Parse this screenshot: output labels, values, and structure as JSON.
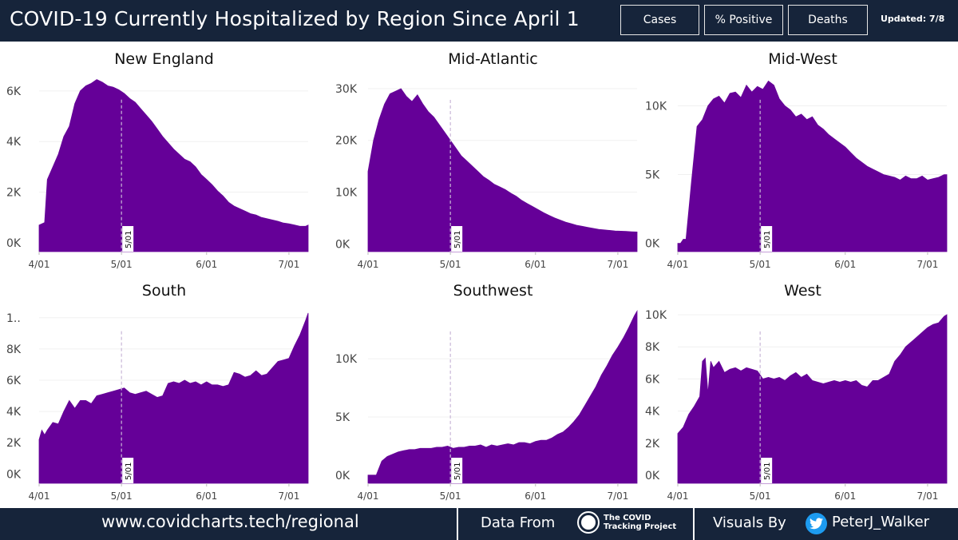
{
  "header": {
    "title": "COVID-19 Currently Hospitalized by Region Since April 1",
    "buttons": [
      "Cases",
      "% Positive",
      "Deaths"
    ],
    "updated": "Updated: 7/8"
  },
  "footer": {
    "url": "www.covidcharts.tech/regional",
    "data_from": "Data From",
    "logo_text": "The COVID Tracking Project",
    "visuals_by": "Visuals By",
    "handle": "PeterJ_Walker"
  },
  "colors": {
    "fill": "#650098",
    "header_bg": "#16243a",
    "marker_line": "#c9b7d8"
  },
  "chart_data": [
    {
      "type": "area",
      "title": "New England",
      "x_ticks": [
        "4/01",
        "5/01",
        "6/01",
        "7/01"
      ],
      "y_ticks": [
        "0K",
        "2K",
        "4K",
        "6K"
      ],
      "y_tick_values": [
        0,
        2000,
        4000,
        6000
      ],
      "ylim": [
        -350,
        6500
      ],
      "xlim": [
        0,
        98
      ],
      "marker": {
        "label": "5/01",
        "day": 30
      },
      "x_days": [
        0,
        2,
        3,
        5,
        7,
        9,
        11,
        13,
        15,
        17,
        19,
        21,
        23,
        25,
        27,
        29,
        31,
        33,
        35,
        37,
        39,
        41,
        43,
        45,
        47,
        49,
        51,
        53,
        55,
        57,
        59,
        61,
        63,
        65,
        67,
        69,
        71,
        73,
        75,
        77,
        79,
        81,
        83,
        85,
        87,
        89,
        91,
        93,
        95,
        97,
        98
      ],
      "values": [
        700,
        800,
        2500,
        3000,
        3500,
        4200,
        4600,
        5500,
        6000,
        6200,
        6300,
        6450,
        6350,
        6200,
        6150,
        6050,
        5900,
        5700,
        5550,
        5300,
        5050,
        4800,
        4500,
        4200,
        3950,
        3700,
        3500,
        3300,
        3200,
        3000,
        2700,
        2500,
        2300,
        2050,
        1850,
        1600,
        1450,
        1350,
        1250,
        1150,
        1100,
        1000,
        950,
        900,
        850,
        780,
        750,
        700,
        650,
        650,
        700
      ]
    },
    {
      "type": "area",
      "title": "Mid-Atlantic",
      "x_ticks": [
        "4/01",
        "5/01",
        "6/01",
        "7/01"
      ],
      "y_ticks": [
        "0K",
        "10K",
        "20K",
        "30K"
      ],
      "y_tick_values": [
        0,
        10000,
        20000,
        30000
      ],
      "ylim": [
        -1500,
        32000
      ],
      "xlim": [
        0,
        98
      ],
      "marker": {
        "label": "5/01",
        "day": 30
      },
      "x_days": [
        0,
        2,
        4,
        6,
        8,
        10,
        12,
        14,
        16,
        18,
        20,
        22,
        24,
        26,
        28,
        30,
        32,
        34,
        36,
        38,
        40,
        42,
        44,
        46,
        48,
        50,
        52,
        54,
        56,
        58,
        60,
        62,
        64,
        66,
        68,
        70,
        72,
        74,
        76,
        78,
        80,
        82,
        84,
        86,
        88,
        90,
        92,
        94,
        96,
        98
      ],
      "values": [
        14000,
        20000,
        24000,
        27000,
        29000,
        29500,
        30000,
        28500,
        27500,
        28800,
        27000,
        25500,
        24500,
        23000,
        21500,
        20000,
        18500,
        17000,
        16000,
        15000,
        14000,
        13000,
        12300,
        11500,
        11000,
        10500,
        9800,
        9200,
        8400,
        7800,
        7200,
        6600,
        6000,
        5500,
        5000,
        4600,
        4200,
        3900,
        3600,
        3400,
        3200,
        3000,
        2800,
        2700,
        2600,
        2500,
        2450,
        2400,
        2350,
        2300
      ]
    },
    {
      "type": "area",
      "title": "Mid-West",
      "x_ticks": [
        "4/01",
        "5/01",
        "6/01",
        "7/01"
      ],
      "y_ticks": [
        "0K",
        "5K",
        "10K"
      ],
      "y_tick_values": [
        0,
        5000,
        10000
      ],
      "ylim": [
        -600,
        12000
      ],
      "xlim": [
        0,
        98
      ],
      "marker": {
        "label": "5/01",
        "day": 30
      },
      "x_days": [
        0,
        1,
        2,
        3,
        5,
        7,
        9,
        11,
        13,
        15,
        17,
        19,
        21,
        23,
        25,
        27,
        29,
        31,
        33,
        35,
        37,
        39,
        41,
        43,
        45,
        47,
        49,
        51,
        53,
        55,
        57,
        59,
        61,
        63,
        65,
        67,
        69,
        71,
        73,
        75,
        77,
        79,
        81,
        83,
        85,
        87,
        89,
        91,
        93,
        95,
        97,
        98
      ],
      "values": [
        0,
        0,
        300,
        300,
        4500,
        8500,
        9000,
        10000,
        10500,
        10700,
        10200,
        10900,
        11000,
        10600,
        11500,
        11000,
        11400,
        11200,
        11800,
        11500,
        10500,
        10000,
        9700,
        9200,
        9400,
        9000,
        9200,
        8600,
        8300,
        7900,
        7600,
        7300,
        7000,
        6600,
        6200,
        5900,
        5600,
        5400,
        5200,
        5000,
        4900,
        4800,
        4600,
        4900,
        4700,
        4700,
        4900,
        4600,
        4700,
        4800,
        5000,
        5000
      ]
    },
    {
      "type": "area",
      "title": "South",
      "x_ticks": [
        "4/01",
        "5/01",
        "6/01",
        "7/01"
      ],
      "y_ticks": [
        "0K",
        "2K",
        "4K",
        "6K",
        "8K",
        "1.."
      ],
      "y_tick_values": [
        0,
        2000,
        4000,
        6000,
        8000,
        10000
      ],
      "ylim": [
        -600,
        10500
      ],
      "xlim": [
        0,
        98
      ],
      "marker": {
        "label": "5/01",
        "day": 30
      },
      "x_days": [
        0,
        1,
        2,
        3,
        5,
        7,
        9,
        11,
        13,
        15,
        17,
        19,
        21,
        23,
        25,
        27,
        29,
        31,
        33,
        35,
        37,
        39,
        41,
        43,
        45,
        47,
        49,
        51,
        53,
        55,
        57,
        59,
        61,
        63,
        65,
        67,
        69,
        71,
        73,
        75,
        77,
        79,
        81,
        83,
        85,
        87,
        89,
        91,
        93,
        95,
        97,
        98
      ],
      "values": [
        2200,
        2800,
        2500,
        2800,
        3300,
        3200,
        4000,
        4700,
        4200,
        4700,
        4700,
        4500,
        5000,
        5100,
        5200,
        5300,
        5400,
        5500,
        5200,
        5100,
        5200,
        5300,
        5100,
        4900,
        5000,
        5800,
        5900,
        5800,
        6000,
        5800,
        5900,
        5700,
        5900,
        5700,
        5700,
        5600,
        5700,
        6500,
        6400,
        6200,
        6300,
        6600,
        6300,
        6400,
        6800,
        7200,
        7300,
        7400,
        8200,
        8900,
        9800,
        10300
      ]
    },
    {
      "type": "area",
      "title": "Southwest",
      "x_ticks": [
        "4/01",
        "5/01",
        "6/01",
        "7/01"
      ],
      "y_ticks": [
        "0K",
        "5K",
        "10K"
      ],
      "y_tick_values": [
        0,
        5000,
        10000
      ],
      "ylim": [
        -700,
        14200
      ],
      "xlim": [
        0,
        98
      ],
      "marker": {
        "label": "5/01",
        "day": 30
      },
      "x_days": [
        0,
        1,
        2,
        3,
        5,
        7,
        9,
        11,
        13,
        15,
        17,
        19,
        21,
        23,
        25,
        27,
        29,
        31,
        33,
        35,
        37,
        39,
        41,
        43,
        45,
        47,
        49,
        51,
        53,
        55,
        57,
        59,
        61,
        63,
        65,
        67,
        69,
        71,
        73,
        75,
        77,
        79,
        81,
        83,
        85,
        87,
        89,
        91,
        93,
        95,
        97,
        98
      ],
      "values": [
        0,
        0,
        0,
        0,
        1200,
        1600,
        1800,
        2000,
        2100,
        2200,
        2200,
        2300,
        2300,
        2300,
        2400,
        2400,
        2500,
        2300,
        2400,
        2400,
        2500,
        2500,
        2600,
        2400,
        2600,
        2500,
        2600,
        2700,
        2600,
        2800,
        2800,
        2700,
        2900,
        3000,
        3000,
        3200,
        3500,
        3700,
        4100,
        4600,
        5200,
        6000,
        6800,
        7600,
        8600,
        9400,
        10300,
        11000,
        11800,
        12700,
        13700,
        14100
      ]
    },
    {
      "type": "area",
      "title": "West",
      "x_ticks": [
        "4/01",
        "5/01",
        "6/01",
        "7/01"
      ],
      "y_ticks": [
        "0K",
        "2K",
        "4K",
        "6K",
        "8K",
        "10K"
      ],
      "y_tick_values": [
        0,
        2000,
        4000,
        6000,
        8000,
        10000
      ],
      "ylim": [
        -500,
        10300
      ],
      "xlim": [
        0,
        98
      ],
      "marker": {
        "label": "5/01",
        "day": 30
      },
      "x_days": [
        0,
        2,
        4,
        6,
        8,
        9,
        10,
        11,
        12,
        13,
        15,
        17,
        19,
        21,
        23,
        25,
        27,
        29,
        31,
        33,
        35,
        37,
        39,
        41,
        43,
        45,
        47,
        49,
        51,
        53,
        55,
        57,
        59,
        61,
        63,
        65,
        67,
        69,
        71,
        73,
        75,
        77,
        79,
        81,
        83,
        85,
        87,
        89,
        91,
        93,
        95,
        97,
        98
      ],
      "values": [
        2600,
        3000,
        3800,
        4300,
        4900,
        7100,
        7300,
        5100,
        7100,
        6700,
        7100,
        6400,
        6600,
        6700,
        6500,
        6700,
        6600,
        6500,
        6000,
        6100,
        6000,
        6100,
        5900,
        6200,
        6400,
        6100,
        6300,
        5900,
        5800,
        5700,
        5800,
        5900,
        5800,
        5900,
        5800,
        5900,
        5600,
        5500,
        5900,
        5900,
        6100,
        6300,
        7100,
        7500,
        8000,
        8300,
        8600,
        8900,
        9200,
        9400,
        9500,
        9900,
        10000
      ]
    }
  ]
}
